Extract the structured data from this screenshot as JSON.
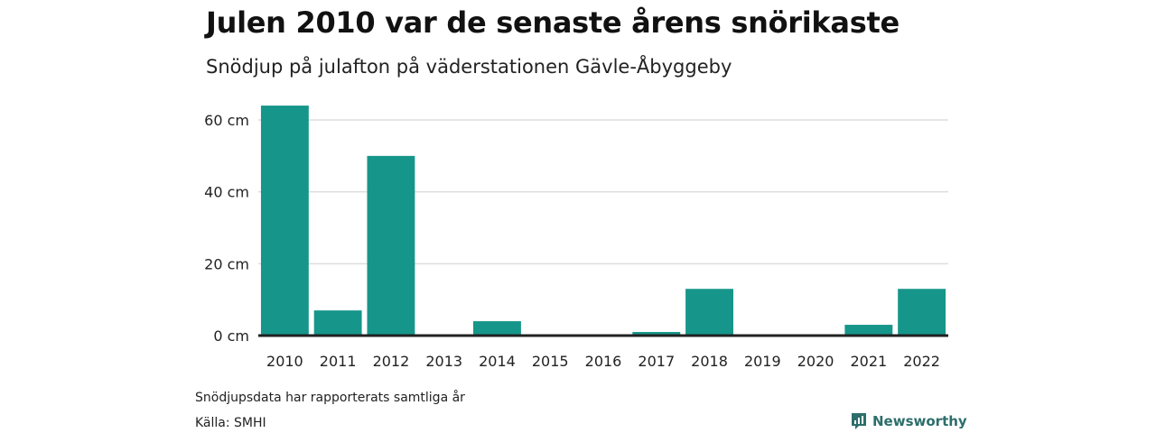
{
  "title": "Julen 2010 var de senaste årens snörikaste",
  "subtitle": "Snödjup på julafton på väderstationen Gävle-Åbyggeby",
  "notes": {
    "line1": "Snödjupsdata har rapporterats samtliga år",
    "line2": "Källa: SMHI"
  },
  "brand": {
    "name": "Newsworthy",
    "icon": "newsworthy-logo-icon",
    "color": "#2c6e6a"
  },
  "colors": {
    "bar": "#16968a",
    "grid": "#dddddd",
    "baseline": "#222222"
  },
  "chart_data": {
    "type": "bar",
    "title": "Julen 2010 var de senaste årens snörikaste",
    "subtitle": "Snödjup på julafton på väderstationen Gävle-Åbyggeby",
    "xlabel": "",
    "ylabel": "",
    "categories": [
      "2010",
      "2011",
      "2012",
      "2013",
      "2014",
      "2015",
      "2016",
      "2017",
      "2018",
      "2019",
      "2020",
      "2021",
      "2022"
    ],
    "values": [
      64,
      7,
      50,
      0,
      4,
      0,
      0,
      1,
      13,
      0,
      0,
      3,
      13
    ],
    "unit": "cm",
    "ylim": [
      0,
      60
    ],
    "yticks": [
      0,
      20,
      40,
      60
    ],
    "ytick_labels": [
      "0 cm",
      "20 cm",
      "40 cm",
      "60 cm"
    ],
    "grid": true,
    "legend": "none"
  }
}
